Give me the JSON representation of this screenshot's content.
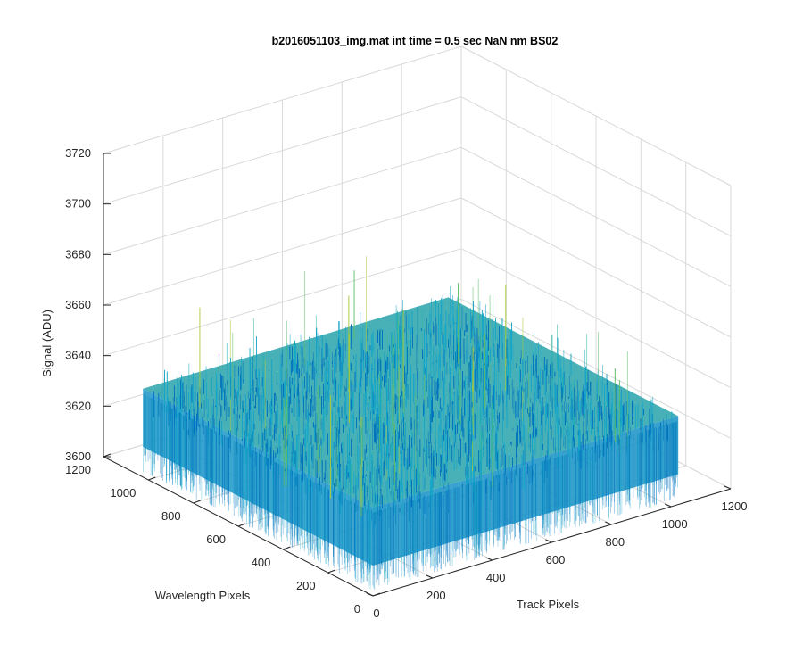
{
  "chart_data": {
    "type": "surface",
    "title": "b2016051103_img.mat int time = 0.5 sec  NaN nm BS02",
    "xlabel": "Track Pixels",
    "ylabel": "Wavelength Pixels",
    "zlabel": "Signal (ADU)",
    "xlim": [
      0,
      1200
    ],
    "ylim": [
      0,
      1200
    ],
    "zlim": [
      3600,
      3720
    ],
    "x_ticks": [
      "0",
      "200",
      "400",
      "600",
      "800",
      "1000",
      "1200"
    ],
    "y_ticks": [
      "0",
      "200",
      "400",
      "600",
      "800",
      "1000",
      "1200"
    ],
    "z_ticks": [
      "3600",
      "3620",
      "3640",
      "3660",
      "3680",
      "3700",
      "3720"
    ],
    "surface": {
      "x_extent": [
        0,
        1024
      ],
      "y_extent": [
        0,
        1024
      ],
      "mean": 3635,
      "noise_range": [
        3612,
        3700
      ],
      "colormap": "parula"
    },
    "grid": true,
    "colors": {
      "low": "#0072bd",
      "mid": "#16a5c8",
      "high": "#a8c83a",
      "axis": "#262626",
      "grid": "#d9d9d9"
    }
  }
}
